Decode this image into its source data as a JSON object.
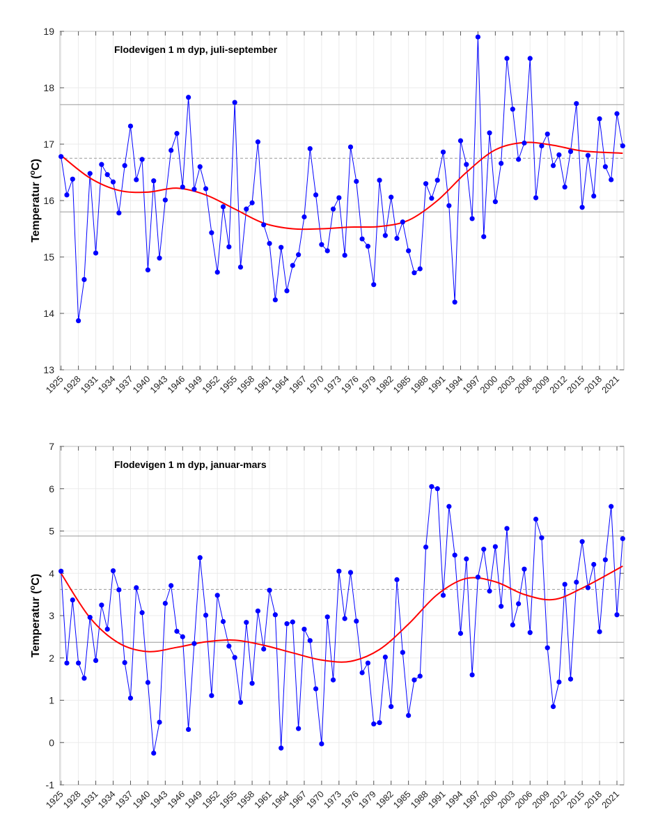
{
  "chart_data": [
    {
      "type": "line",
      "title": "Flodevigen 1 m dyp, juli-september",
      "ylabel": {
        "prefix": "Temperatur (",
        "sup": "o",
        "suffix": "C)"
      },
      "xlim": [
        1924.8,
        2022.2
      ],
      "ylim": [
        13,
        19
      ],
      "yticks": [
        13,
        14,
        15,
        16,
        17,
        18,
        19
      ],
      "xticks": [
        1925,
        1928,
        1931,
        1934,
        1937,
        1940,
        1943,
        1946,
        1949,
        1952,
        1955,
        1958,
        1961,
        1964,
        1967,
        1970,
        1973,
        1976,
        1979,
        1982,
        1985,
        1988,
        1991,
        1994,
        1997,
        2000,
        2003,
        2006,
        2009,
        2012,
        2015,
        2018,
        2021
      ],
      "grid": true,
      "colors": {
        "series": "#0000ff",
        "smooth": "#ff0000",
        "reference": "#999999"
      },
      "reference_lines": [
        {
          "value": 17.7,
          "style": "solid"
        },
        {
          "value": 16.75,
          "style": "dashed"
        },
        {
          "value": 15.8,
          "style": "solid"
        }
      ],
      "x_start": 1925,
      "values": [
        16.78,
        16.1,
        16.38,
        13.87,
        14.6,
        16.48,
        15.07,
        16.64,
        16.46,
        16.33,
        15.78,
        16.62,
        17.32,
        16.37,
        16.73,
        14.77,
        16.35,
        14.98,
        16.01,
        16.89,
        17.19,
        16.24,
        17.83,
        16.2,
        16.6,
        16.21,
        15.43,
        14.73,
        15.89,
        15.18,
        17.74,
        14.82,
        15.85,
        15.96,
        17.04,
        15.57,
        15.24,
        14.24,
        15.17,
        14.4,
        14.85,
        15.04,
        15.71,
        16.92,
        16.1,
        15.22,
        15.11,
        15.85,
        16.05,
        15.03,
        16.95,
        16.34,
        15.32,
        15.19,
        14.51,
        16.36,
        15.38,
        16.06,
        15.33,
        15.62,
        15.11,
        14.72,
        14.79,
        16.3,
        16.04,
        16.36,
        16.86,
        15.91,
        14.2,
        17.06,
        16.64,
        15.68,
        18.9,
        15.36,
        17.2,
        15.98,
        16.66,
        18.52,
        17.62,
        16.73,
        17.02,
        18.52,
        16.05,
        16.97,
        17.18,
        16.62,
        16.81,
        16.24,
        16.87,
        17.72,
        15.88,
        16.8,
        16.08,
        17.45,
        16.6,
        16.37,
        17.54,
        16.97
      ],
      "smooth": {
        "x": [
          1925,
          1930,
          1935,
          1940,
          1945,
          1950,
          1955,
          1960,
          1965,
          1970,
          1975,
          1980,
          1985,
          1990,
          1995,
          2000,
          2005,
          2010,
          2015,
          2022
        ],
        "y": [
          16.8,
          16.4,
          16.18,
          16.15,
          16.22,
          16.1,
          15.85,
          15.6,
          15.5,
          15.5,
          15.53,
          15.54,
          15.65,
          16.0,
          16.5,
          16.9,
          17.03,
          16.98,
          16.88,
          16.84
        ]
      }
    },
    {
      "type": "line",
      "title": "Flodevigen 1 m dyp, januar-mars",
      "ylabel": {
        "prefix": "Temperatur (",
        "sup": "o",
        "suffix": "C)"
      },
      "xlim": [
        1924.8,
        2022.2
      ],
      "ylim": [
        -1,
        7
      ],
      "yticks": [
        -1,
        0,
        1,
        2,
        3,
        4,
        5,
        6,
        7
      ],
      "xticks": [
        1925,
        1928,
        1931,
        1934,
        1937,
        1940,
        1943,
        1946,
        1949,
        1952,
        1955,
        1958,
        1961,
        1964,
        1967,
        1970,
        1973,
        1976,
        1979,
        1982,
        1985,
        1988,
        1991,
        1994,
        1997,
        2000,
        2003,
        2006,
        2009,
        2012,
        2015,
        2018,
        2021
      ],
      "grid": true,
      "colors": {
        "series": "#0000ff",
        "smooth": "#ff0000",
        "reference": "#999999"
      },
      "reference_lines": [
        {
          "value": 4.88,
          "style": "solid"
        },
        {
          "value": 3.62,
          "style": "dashed"
        },
        {
          "value": 2.37,
          "style": "solid"
        }
      ],
      "x_start": 1925,
      "values": [
        4.05,
        1.88,
        3.37,
        1.88,
        1.52,
        2.96,
        1.94,
        3.25,
        2.68,
        4.06,
        3.61,
        1.89,
        1.05,
        3.66,
        3.07,
        1.42,
        -0.25,
        0.48,
        3.29,
        3.71,
        2.63,
        2.5,
        0.31,
        2.34,
        4.37,
        3.01,
        1.11,
        3.48,
        2.86,
        2.28,
        2.01,
        0.95,
        2.84,
        1.4,
        3.11,
        2.21,
        3.6,
        3.02,
        -0.13,
        2.81,
        2.85,
        0.33,
        2.68,
        2.41,
        1.27,
        -0.03,
        2.97,
        1.48,
        4.05,
        2.93,
        4.02,
        2.87,
        1.65,
        1.88,
        0.44,
        0.47,
        2.02,
        0.85,
        3.85,
        2.13,
        0.64,
        1.48,
        1.57,
        4.62,
        6.05,
        6.0,
        3.48,
        5.58,
        4.43,
        2.58,
        4.34,
        1.6,
        3.91,
        4.57,
        3.58,
        4.63,
        3.22,
        5.06,
        2.78,
        3.28,
        4.1,
        2.6,
        5.28,
        4.84,
        2.24,
        0.85,
        1.43,
        3.74,
        1.5,
        3.79,
        4.75,
        3.66,
        4.21,
        2.62,
        4.32,
        5.58,
        3.02,
        4.82
      ],
      "smooth": {
        "x": [
          1925,
          1930,
          1935,
          1940,
          1945,
          1950,
          1955,
          1960,
          1965,
          1970,
          1975,
          1980,
          1985,
          1990,
          1995,
          2000,
          2005,
          2010,
          2015,
          2022
        ],
        "y": [
          4.0,
          2.95,
          2.35,
          2.15,
          2.25,
          2.38,
          2.42,
          2.3,
          2.12,
          1.95,
          1.92,
          2.2,
          2.8,
          3.5,
          3.88,
          3.8,
          3.5,
          3.38,
          3.65,
          4.17
        ]
      }
    }
  ]
}
